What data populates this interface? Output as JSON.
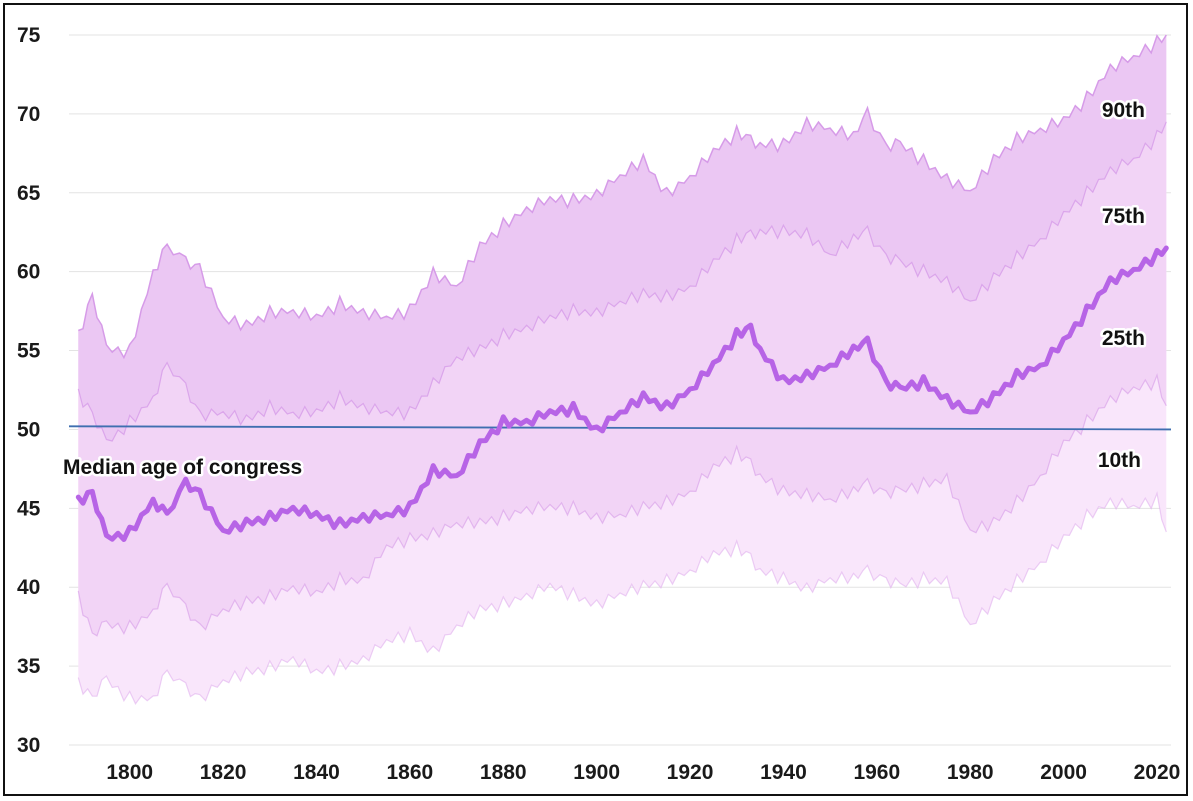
{
  "colors": {
    "band_outer": "#f9e6fb",
    "band_middle": "#f2d4f6",
    "band_inner": "#e9c3f2",
    "band_line": "#d69be8",
    "median_line": "#b764e6",
    "reference_line": "#3f6fb0",
    "grid": "#e3e3e3"
  },
  "chart_data": {
    "type": "line",
    "title": "",
    "xlabel": "",
    "ylabel": "",
    "xlim": [
      1787,
      2023
    ],
    "ylim": [
      30,
      75
    ],
    "grid": true,
    "x_ticks": [
      1800,
      1820,
      1840,
      1860,
      1880,
      1900,
      1920,
      1940,
      1960,
      1980,
      2000,
      2020
    ],
    "y_ticks": [
      30,
      35,
      40,
      45,
      50,
      55,
      60,
      65,
      70,
      75
    ],
    "x": [
      1789,
      1792,
      1795,
      1800,
      1805,
      1808,
      1812,
      1815,
      1820,
      1825,
      1830,
      1835,
      1840,
      1845,
      1850,
      1855,
      1860,
      1865,
      1870,
      1875,
      1880,
      1885,
      1890,
      1895,
      1900,
      1905,
      1910,
      1915,
      1920,
      1925,
      1930,
      1933,
      1935,
      1940,
      1945,
      1950,
      1955,
      1958,
      1962,
      1965,
      1970,
      1975,
      1980,
      1985,
      1990,
      1995,
      2000,
      2005,
      2010,
      2015,
      2020,
      2022
    ],
    "series": [
      {
        "name": "90th",
        "values": [
          56.0,
          58.5,
          55.0,
          55.0,
          60.0,
          61.5,
          60.5,
          60.3,
          57.0,
          56.5,
          57.5,
          57.5,
          57.0,
          58.0,
          57.5,
          57.0,
          57.5,
          60.0,
          59.0,
          61.5,
          63.0,
          64.0,
          64.5,
          64.5,
          65.0,
          66.0,
          67.0,
          65.0,
          66.0,
          67.5,
          68.8,
          68.5,
          68.0,
          68.0,
          69.5,
          69.0,
          68.5,
          70.0,
          68.0,
          68.0,
          67.0,
          66.0,
          65.0,
          67.0,
          68.5,
          69.0,
          69.5,
          71.0,
          73.0,
          73.5,
          74.5,
          75.0
        ]
      },
      {
        "name": "75th",
        "values": [
          52.3,
          51.0,
          49.0,
          50.5,
          52.0,
          54.0,
          52.5,
          51.0,
          51.0,
          50.5,
          51.5,
          51.0,
          51.0,
          52.0,
          51.5,
          51.0,
          51.0,
          53.0,
          54.5,
          55.0,
          56.0,
          56.5,
          57.0,
          57.5,
          57.5,
          58.0,
          58.5,
          58.5,
          59.0,
          60.5,
          62.0,
          62.5,
          62.5,
          62.5,
          62.5,
          61.0,
          62.0,
          62.5,
          61.0,
          60.5,
          60.0,
          59.5,
          58.0,
          59.5,
          61.0,
          62.0,
          63.5,
          65.0,
          66.5,
          67.0,
          68.5,
          69.5
        ]
      },
      {
        "name": "Median age of congress",
        "values": [
          45.5,
          46.0,
          43.0,
          43.5,
          45.5,
          44.5,
          46.5,
          46.0,
          43.5,
          44.0,
          44.5,
          45.0,
          44.5,
          44.0,
          44.5,
          44.5,
          45.0,
          47.5,
          47.0,
          49.0,
          50.5,
          50.5,
          51.0,
          51.3,
          50.0,
          51.0,
          52.0,
          51.5,
          52.5,
          54.0,
          56.0,
          56.5,
          55.0,
          53.0,
          53.5,
          54.0,
          55.0,
          55.5,
          53.0,
          52.5,
          53.0,
          52.0,
          51.0,
          52.0,
          53.5,
          54.0,
          55.5,
          57.5,
          59.5,
          60.0,
          61.0,
          61.5
        ]
      },
      {
        "name": "25th",
        "values": [
          39.5,
          37.0,
          37.5,
          37.5,
          38.5,
          40.0,
          38.5,
          37.5,
          38.5,
          39.0,
          39.5,
          40.0,
          39.5,
          40.5,
          40.5,
          42.5,
          43.0,
          43.5,
          44.0,
          44.0,
          44.5,
          45.0,
          45.0,
          45.0,
          44.5,
          44.5,
          45.0,
          45.5,
          46.0,
          47.5,
          48.5,
          48.0,
          47.0,
          46.0,
          46.0,
          45.5,
          46.0,
          46.5,
          46.0,
          46.0,
          46.5,
          47.0,
          43.5,
          44.0,
          45.5,
          47.0,
          49.0,
          50.5,
          52.0,
          52.5,
          53.0,
          51.5
        ]
      },
      {
        "name": "10th",
        "values": [
          34.0,
          33.0,
          34.0,
          33.0,
          33.0,
          34.5,
          33.5,
          33.0,
          34.0,
          34.5,
          35.0,
          35.5,
          34.5,
          35.0,
          35.5,
          36.5,
          37.0,
          36.0,
          37.5,
          38.5,
          39.0,
          39.5,
          40.0,
          39.5,
          39.0,
          39.5,
          40.0,
          40.5,
          41.0,
          42.0,
          42.5,
          42.0,
          41.0,
          40.5,
          40.0,
          40.5,
          40.5,
          41.0,
          40.5,
          40.0,
          40.5,
          40.5,
          37.5,
          39.0,
          40.5,
          41.5,
          43.0,
          44.5,
          45.5,
          45.0,
          45.5,
          43.5
        ]
      }
    ],
    "reference_line": {
      "y_start": 50.2,
      "y_end": 50.0
    },
    "labels": {
      "p90": "90th",
      "p75": "75th",
      "p25": "25th",
      "p10": "10th",
      "median": "Median age of congress"
    },
    "legend": "none"
  }
}
